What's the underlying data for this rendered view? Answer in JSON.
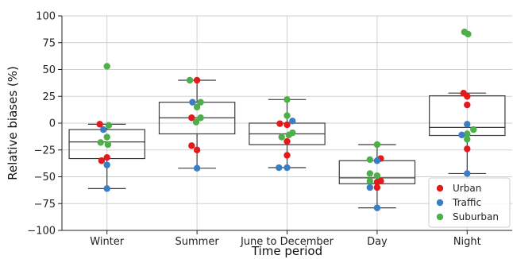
{
  "chart_data": {
    "type": "box",
    "xlabel": "Time period",
    "ylabel": "Relative biases (%)",
    "ylim": [
      -100,
      100
    ],
    "yticks": [
      -100,
      -75,
      -50,
      -25,
      0,
      25,
      50,
      75,
      100
    ],
    "ytick_labels": [
      "−100",
      "−75",
      "−50",
      "−25",
      "0",
      "25",
      "50",
      "75",
      "100"
    ],
    "grid": true,
    "legend_position": "bottom-right",
    "categories": [
      "Winter",
      "Summer",
      "June to December",
      "Day",
      "Night"
    ],
    "series_colors": {
      "Urban": "#e31a1c",
      "Traffic": "#3a7dc4",
      "Suburban": "#4daf4a"
    },
    "legend": [
      {
        "name": "Urban",
        "color": "#e31a1c"
      },
      {
        "name": "Traffic",
        "color": "#3a7dc4"
      },
      {
        "name": "Suburban",
        "color": "#4daf4a"
      }
    ],
    "boxes": [
      {
        "category": "Winter",
        "whisker_low": -61,
        "q1": -33,
        "median": -17.5,
        "q3": -6,
        "whisker_high": -1
      },
      {
        "category": "Summer",
        "whisker_low": -42,
        "q1": -10,
        "median": 5,
        "q3": 19.5,
        "whisker_high": 40
      },
      {
        "category": "June to December",
        "whisker_low": -41.5,
        "q1": -20,
        "median": -10,
        "q3": 0,
        "whisker_high": 22
      },
      {
        "category": "Day",
        "whisker_low": -79,
        "q1": -56.5,
        "median": -51,
        "q3": -35,
        "whisker_high": -20
      },
      {
        "category": "Night",
        "whisker_low": -47,
        "q1": -11.5,
        "median": -4,
        "q3": 25.5,
        "whisker_high": 28
      }
    ],
    "points": [
      {
        "category": "Winter",
        "series": "Suburban",
        "y": 53,
        "jitter": 0
      },
      {
        "category": "Winter",
        "series": "Urban",
        "y": -1,
        "jitter": -0.08
      },
      {
        "category": "Winter",
        "series": "Suburban",
        "y": -2,
        "jitter": 0.02
      },
      {
        "category": "Winter",
        "series": "Traffic",
        "y": -6,
        "jitter": -0.04
      },
      {
        "category": "Winter",
        "series": "Suburban",
        "y": -13,
        "jitter": 0
      },
      {
        "category": "Winter",
        "series": "Suburban",
        "y": -18,
        "jitter": -0.07
      },
      {
        "category": "Winter",
        "series": "Suburban",
        "y": -20,
        "jitter": 0.01
      },
      {
        "category": "Winter",
        "series": "Urban",
        "y": -32,
        "jitter": 0
      },
      {
        "category": "Winter",
        "series": "Urban",
        "y": -35,
        "jitter": -0.06
      },
      {
        "category": "Winter",
        "series": "Traffic",
        "y": -39,
        "jitter": 0
      },
      {
        "category": "Winter",
        "series": "Traffic",
        "y": -61,
        "jitter": 0
      },
      {
        "category": "Summer",
        "series": "Suburban",
        "y": 40,
        "jitter": -0.08
      },
      {
        "category": "Summer",
        "series": "Urban",
        "y": 40,
        "jitter": 0
      },
      {
        "category": "Summer",
        "series": "Traffic",
        "y": 19.5,
        "jitter": -0.05
      },
      {
        "category": "Summer",
        "series": "Suburban",
        "y": 19.5,
        "jitter": 0.04
      },
      {
        "category": "Summer",
        "series": "Suburban",
        "y": 15,
        "jitter": 0
      },
      {
        "category": "Summer",
        "series": "Urban",
        "y": 5,
        "jitter": -0.06
      },
      {
        "category": "Summer",
        "series": "Suburban",
        "y": 5,
        "jitter": 0.04
      },
      {
        "category": "Summer",
        "series": "Suburban",
        "y": 1,
        "jitter": -0.01
      },
      {
        "category": "Summer",
        "series": "Urban",
        "y": -21,
        "jitter": -0.06
      },
      {
        "category": "Summer",
        "series": "Urban",
        "y": -25,
        "jitter": 0
      },
      {
        "category": "Summer",
        "series": "Traffic",
        "y": -42,
        "jitter": 0
      },
      {
        "category": "June to December",
        "series": "Suburban",
        "y": 22,
        "jitter": 0
      },
      {
        "category": "June to December",
        "series": "Suburban",
        "y": 7,
        "jitter": 0
      },
      {
        "category": "June to December",
        "series": "Traffic",
        "y": 2,
        "jitter": 0.06
      },
      {
        "category": "June to December",
        "series": "Urban",
        "y": -0.5,
        "jitter": -0.08
      },
      {
        "category": "June to December",
        "series": "Urban",
        "y": -1.5,
        "jitter": 0
      },
      {
        "category": "June to December",
        "series": "Suburban",
        "y": -9,
        "jitter": 0.06
      },
      {
        "category": "June to December",
        "series": "Suburban",
        "y": -11,
        "jitter": 0.02
      },
      {
        "category": "June to December",
        "series": "Suburban",
        "y": -13,
        "jitter": -0.06
      },
      {
        "category": "June to December",
        "series": "Urban",
        "y": -17,
        "jitter": 0
      },
      {
        "category": "June to December",
        "series": "Urban",
        "y": -30,
        "jitter": 0
      },
      {
        "category": "June to December",
        "series": "Traffic",
        "y": -41.5,
        "jitter": -0.09
      },
      {
        "category": "June to December",
        "series": "Traffic",
        "y": -41.5,
        "jitter": 0
      },
      {
        "category": "Day",
        "series": "Suburban",
        "y": -20,
        "jitter": 0
      },
      {
        "category": "Day",
        "series": "Urban",
        "y": -33,
        "jitter": 0.04
      },
      {
        "category": "Day",
        "series": "Suburban",
        "y": -34,
        "jitter": -0.08
      },
      {
        "category": "Day",
        "series": "Traffic",
        "y": -35,
        "jitter": 0
      },
      {
        "category": "Day",
        "series": "Suburban",
        "y": -47,
        "jitter": -0.08
      },
      {
        "category": "Day",
        "series": "Suburban",
        "y": -49,
        "jitter": 0
      },
      {
        "category": "Day",
        "series": "Urban",
        "y": -54,
        "jitter": 0.04
      },
      {
        "category": "Day",
        "series": "Suburban",
        "y": -54,
        "jitter": -0.08
      },
      {
        "category": "Day",
        "series": "Urban",
        "y": -55,
        "jitter": 0
      },
      {
        "category": "Day",
        "series": "Traffic",
        "y": -60,
        "jitter": -0.08
      },
      {
        "category": "Day",
        "series": "Urban",
        "y": -60,
        "jitter": 0
      },
      {
        "category": "Day",
        "series": "Traffic",
        "y": -79,
        "jitter": 0
      },
      {
        "category": "Night",
        "series": "Suburban",
        "y": 85,
        "jitter": -0.03
      },
      {
        "category": "Night",
        "series": "Suburban",
        "y": 83,
        "jitter": 0.01
      },
      {
        "category": "Night",
        "series": "Urban",
        "y": 28,
        "jitter": -0.04
      },
      {
        "category": "Night",
        "series": "Urban",
        "y": 25,
        "jitter": 0
      },
      {
        "category": "Night",
        "series": "Urban",
        "y": 17,
        "jitter": 0
      },
      {
        "category": "Night",
        "series": "Traffic",
        "y": -1,
        "jitter": 0
      },
      {
        "category": "Night",
        "series": "Suburban",
        "y": -6,
        "jitter": 0.07
      },
      {
        "category": "Night",
        "series": "Suburban",
        "y": -10,
        "jitter": 0
      },
      {
        "category": "Night",
        "series": "Traffic",
        "y": -11,
        "jitter": -0.06
      },
      {
        "category": "Night",
        "series": "Suburban",
        "y": -15,
        "jitter": 0
      },
      {
        "category": "Night",
        "series": "Urban",
        "y": -24,
        "jitter": 0
      },
      {
        "category": "Night",
        "series": "Traffic",
        "y": -47,
        "jitter": 0
      }
    ]
  }
}
